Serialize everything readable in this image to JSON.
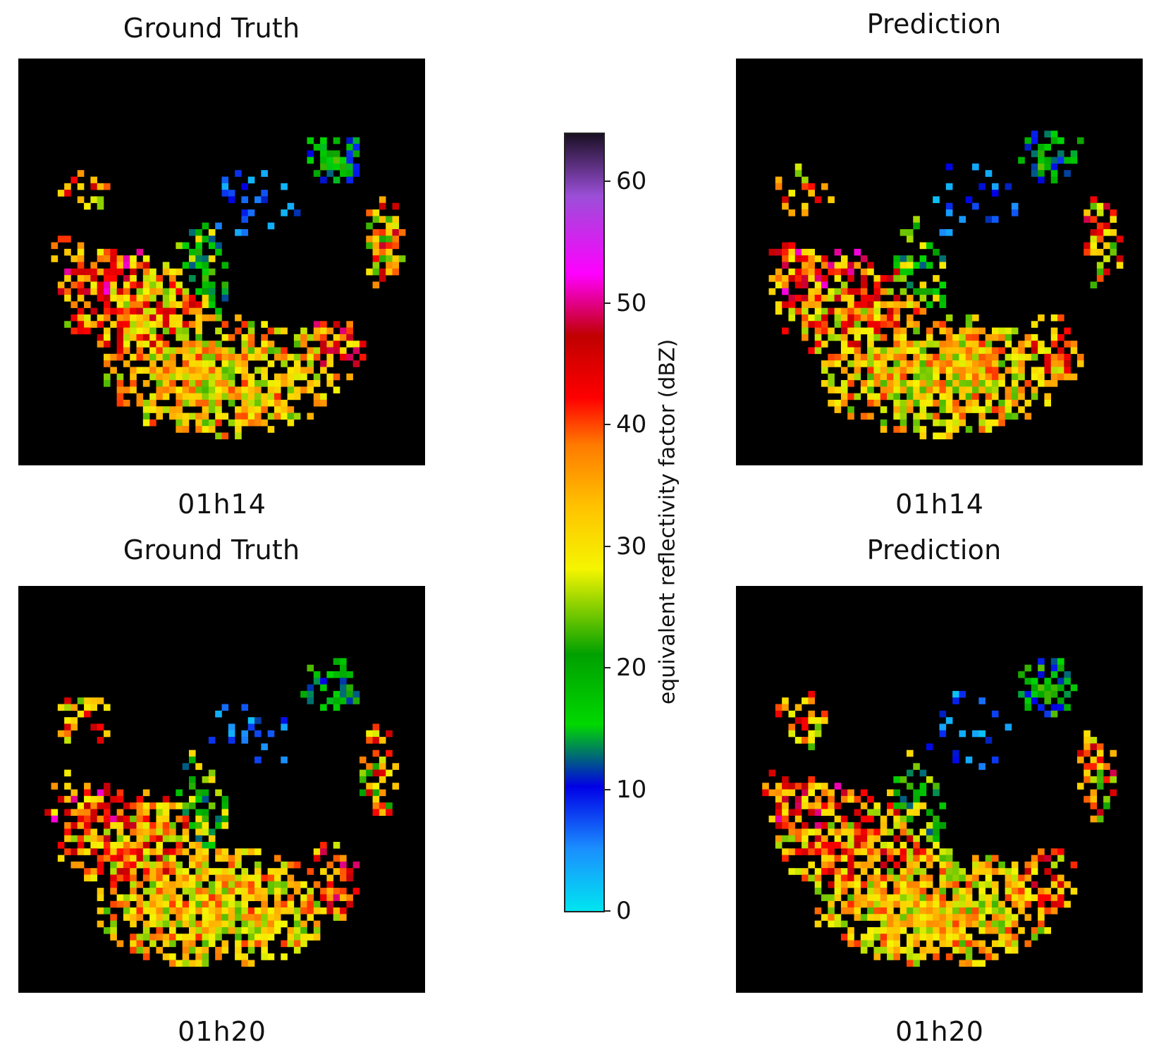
{
  "chart_data": [
    {
      "type": "heatmap",
      "title": "Ground Truth",
      "caption": "01h14",
      "colorbar_ref": "reflectivity"
    },
    {
      "type": "heatmap",
      "title": "Prediction",
      "caption": "01h14",
      "colorbar_ref": "reflectivity"
    },
    {
      "type": "heatmap",
      "title": "Ground Truth",
      "caption": "01h20",
      "colorbar_ref": "reflectivity"
    },
    {
      "type": "heatmap",
      "title": "Prediction",
      "caption": "01h20",
      "colorbar_ref": "reflectivity"
    }
  ],
  "colorbar": {
    "label": "equivalent reflectivity factor (dBZ)",
    "range": [
      0,
      64
    ],
    "ticks": [
      "0",
      "10",
      "20",
      "30",
      "40",
      "50",
      "60"
    ],
    "tick_values": [
      0,
      10,
      20,
      30,
      40,
      50,
      60
    ],
    "colors": [
      "#00e5f0",
      "#1b8fff",
      "#0000e6",
      "#00d800",
      "#00a000",
      "#f5f500",
      "#ffc300",
      "#ff7a00",
      "#ff0000",
      "#c00000",
      "#ff00ff",
      "#9b4fd8",
      "#1a1024"
    ],
    "stops": [
      0,
      0.08,
      0.16,
      0.24,
      0.33,
      0.44,
      0.52,
      0.6,
      0.66,
      0.74,
      0.82,
      0.92,
      1.0
    ]
  }
}
